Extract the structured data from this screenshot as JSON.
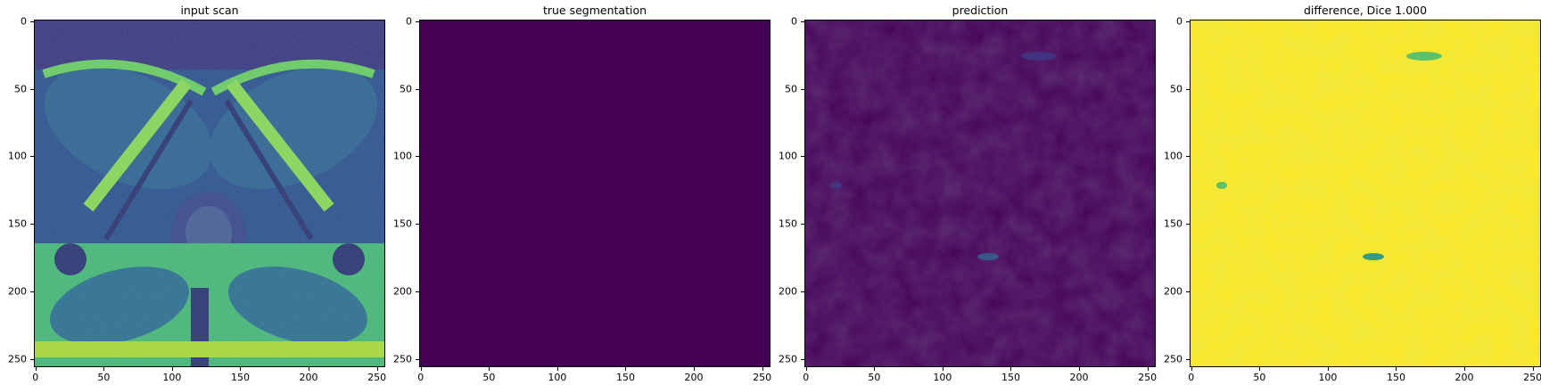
{
  "figure": {
    "colormap": "viridis",
    "colors": {
      "viridis_dark": "#440154",
      "viridis_blue": "#31688e",
      "viridis_teal": "#21918c",
      "viridis_green": "#35b779",
      "viridis_yellow": "#fde725",
      "axis": "#000000",
      "background": "#ffffff"
    },
    "x_ticks": [
      "0",
      "50",
      "100",
      "150",
      "200",
      "250"
    ],
    "y_ticks": [
      "0",
      "50",
      "100",
      "150",
      "200",
      "250"
    ],
    "panels": [
      {
        "title": "input scan"
      },
      {
        "title": "true segmentation"
      },
      {
        "title": "prediction"
      },
      {
        "title": "difference, Dice 1.000"
      }
    ]
  }
}
